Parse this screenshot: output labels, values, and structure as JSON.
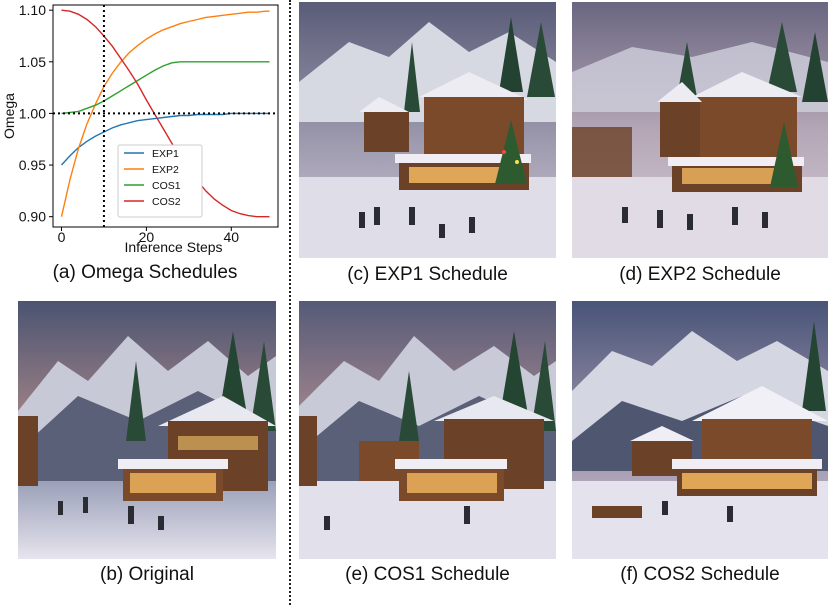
{
  "panels": {
    "a": {
      "caption": "(a) Omega Schedules"
    },
    "b": {
      "caption": "(b) Original"
    },
    "c": {
      "caption": "(c) EXP1 Schedule"
    },
    "d": {
      "caption": "(d) EXP2 Schedule"
    },
    "e": {
      "caption": "(e) COS1 Schedule"
    },
    "f": {
      "caption": "(f) COS2 Schedule"
    }
  },
  "chart_data": {
    "type": "line",
    "title": "",
    "xlabel": "Inference Steps",
    "ylabel": "Omega",
    "xlim": [
      -2,
      51
    ],
    "ylim": [
      0.89,
      1.105
    ],
    "x_ticks": [
      0,
      20,
      40
    ],
    "y_ticks": [
      0.9,
      0.95,
      1.0,
      1.05,
      1.1
    ],
    "y_tick_labels": [
      "0.90",
      "0.95",
      "1.00",
      "1.05",
      "1.10"
    ],
    "grid": false,
    "legend_position": "lower-center",
    "reference_lines": {
      "horizontal_y": 1.0,
      "vertical_x": 10,
      "style": "dotted"
    },
    "x": [
      0,
      2,
      4,
      6,
      8,
      10,
      12,
      14,
      16,
      18,
      20,
      22,
      24,
      26,
      28,
      30,
      32,
      34,
      36,
      38,
      40,
      42,
      44,
      46,
      48,
      49
    ],
    "series": [
      {
        "name": "EXP1",
        "color": "#1f77b4",
        "values": [
          0.95,
          0.959,
          0.967,
          0.973,
          0.978,
          0.982,
          0.986,
          0.989,
          0.991,
          0.993,
          0.994,
          0.995,
          0.996,
          0.997,
          0.998,
          0.998,
          0.999,
          0.999,
          0.999,
          0.999,
          1.0,
          1.0,
          1.0,
          1.0,
          1.0,
          1.0
        ]
      },
      {
        "name": "EXP2",
        "color": "#ff7f0e",
        "values": [
          0.9,
          0.936,
          0.966,
          0.99,
          1.009,
          1.026,
          1.039,
          1.05,
          1.059,
          1.066,
          1.072,
          1.077,
          1.081,
          1.084,
          1.087,
          1.089,
          1.091,
          1.093,
          1.094,
          1.095,
          1.096,
          1.097,
          1.098,
          1.098,
          1.099,
          1.099
        ]
      },
      {
        "name": "COS1",
        "color": "#2ca02c",
        "values": [
          1.0,
          1.001,
          1.002,
          1.005,
          1.008,
          1.012,
          1.017,
          1.022,
          1.027,
          1.032,
          1.037,
          1.042,
          1.046,
          1.049,
          1.05,
          1.05,
          1.05,
          1.05,
          1.05,
          1.05,
          1.05,
          1.05,
          1.05,
          1.05,
          1.05,
          1.05
        ]
      },
      {
        "name": "COS2",
        "color": "#d62728",
        "values": [
          1.1,
          1.099,
          1.096,
          1.091,
          1.084,
          1.075,
          1.065,
          1.053,
          1.041,
          1.028,
          1.013,
          0.999,
          0.985,
          0.971,
          0.958,
          0.946,
          0.935,
          0.925,
          0.917,
          0.911,
          0.906,
          0.903,
          0.901,
          0.9,
          0.9,
          0.9
        ]
      }
    ]
  },
  "colors": {
    "divider": "#222222"
  }
}
